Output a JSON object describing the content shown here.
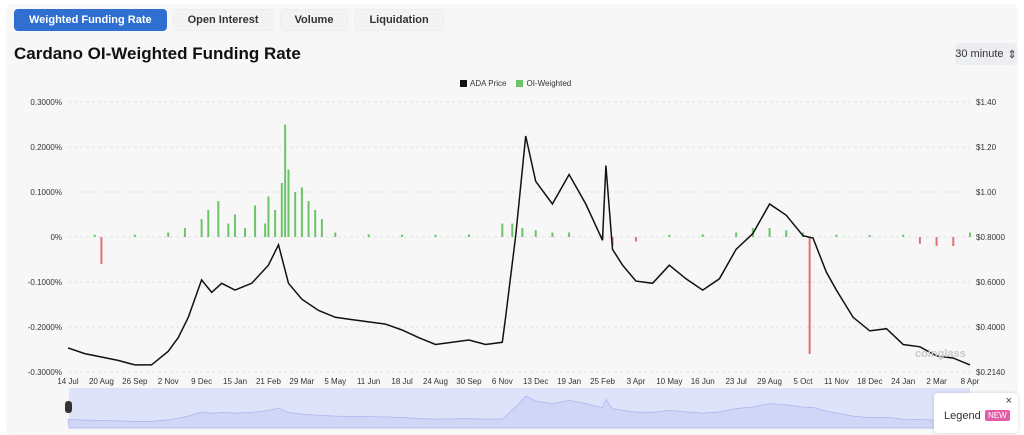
{
  "tabs": [
    {
      "label": "Weighted Funding Rate",
      "active": true
    },
    {
      "label": "Open Interest"
    },
    {
      "label": "Volume"
    },
    {
      "label": "Liquidation"
    }
  ],
  "title": "Cardano OI-Weighted Funding Rate",
  "interval": {
    "value": "30 minute",
    "icon": "updown-chevron-icon"
  },
  "legend_button": {
    "label": "Legend",
    "badge": "NEW",
    "close": "×"
  },
  "watermark": "coinglass",
  "colors": {
    "price": "#111111",
    "positive": "#6cc46a",
    "negative": "#e0707a",
    "accent": "#2f6fd0",
    "navigator": "#dfe3fa"
  },
  "chart_data": {
    "type": "line+bar",
    "legend": [
      "ADA Price",
      "OI-Weighted"
    ],
    "legend_placement": "top",
    "x_ticks": [
      "14 Jul",
      "20 Aug",
      "26 Sep",
      "2 Nov",
      "9 Dec",
      "15 Jan",
      "21 Feb",
      "29 Mar",
      "5 May",
      "11 Jun",
      "18 Jul",
      "24 Aug",
      "30 Sep",
      "6 Nov",
      "13 Dec",
      "19 Jan",
      "25 Feb",
      "3 Apr",
      "10 May",
      "16 Jun",
      "23 Jul",
      "29 Aug",
      "5 Oct",
      "11 Nov",
      "18 Dec",
      "24 Jan",
      "2 Mar",
      "8 Apr"
    ],
    "left_axis": {
      "ticks": [
        "0.3000%",
        "0.2000%",
        "0.1000%",
        "0%",
        "-0.1000%",
        "-0.2000%",
        "-0.3000%"
      ],
      "range": [
        -0.3,
        0.3
      ]
    },
    "right_axis": {
      "ticks": [
        "$1.40",
        "$1.20",
        "$1.00",
        "$0.8000",
        "$0.6000",
        "$0.4000",
        "$0.2140"
      ],
      "range": [
        0.214,
        1.4
      ]
    },
    "grid": true,
    "price_series": {
      "name": "ADA Price",
      "x": [
        0,
        0.5,
        1,
        1.5,
        2,
        2.5,
        3,
        3.3,
        3.6,
        4,
        4.3,
        4.6,
        5,
        5.5,
        6,
        6.3,
        6.6,
        7,
        7.5,
        8,
        8.5,
        9,
        9.5,
        10,
        10.5,
        11,
        11.5,
        12,
        12.5,
        13,
        13.1,
        13.4,
        13.7,
        14,
        14.5,
        15,
        15.5,
        16,
        16.1,
        16.3,
        16.6,
        17,
        17.5,
        18,
        18.5,
        19,
        19.5,
        20,
        20.5,
        21,
        21.5,
        22,
        22.3,
        22.7,
        23,
        23.5,
        24,
        24.5,
        25,
        25.5,
        26,
        26.5,
        27
      ],
      "y": [
        0.315,
        0.29,
        0.275,
        0.26,
        0.24,
        0.24,
        0.3,
        0.36,
        0.45,
        0.615,
        0.56,
        0.6,
        0.57,
        0.6,
        0.68,
        0.77,
        0.6,
        0.53,
        0.48,
        0.45,
        0.44,
        0.43,
        0.42,
        0.394,
        0.36,
        0.33,
        0.34,
        0.35,
        0.33,
        0.34,
        0.45,
        0.81,
        1.25,
        1.05,
        0.95,
        1.08,
        0.95,
        0.79,
        1.12,
        0.75,
        0.68,
        0.61,
        0.6,
        0.68,
        0.62,
        0.57,
        0.62,
        0.75,
        0.82,
        0.95,
        0.9,
        0.81,
        0.8,
        0.65,
        0.57,
        0.45,
        0.39,
        0.4,
        0.33,
        0.32,
        0.28,
        0.27,
        0.24
      ]
    },
    "funding_series": {
      "name": "OI-Weighted",
      "x": [
        0.8,
        1,
        2,
        3,
        3.5,
        4,
        4.2,
        4.5,
        4.8,
        5,
        5.3,
        5.6,
        5.9,
        6,
        6.2,
        6.4,
        6.5,
        6.6,
        6.8,
        7,
        7.2,
        7.4,
        7.6,
        8,
        9,
        10,
        11,
        12,
        13,
        13.3,
        13.6,
        14,
        14.5,
        15,
        16,
        16.3,
        17,
        18,
        19,
        20,
        20.5,
        21,
        21.5,
        22,
        22.2,
        23,
        24,
        25,
        25.5,
        26,
        26.5,
        27
      ],
      "value": [
        0.005,
        -0.06,
        0.005,
        0.01,
        0.02,
        0.04,
        0.06,
        0.08,
        0.03,
        0.05,
        0.02,
        0.07,
        0.03,
        0.09,
        0.06,
        0.12,
        0.25,
        0.15,
        0.1,
        0.11,
        0.08,
        0.06,
        0.04,
        0.01,
        0.006,
        0.005,
        0.005,
        0.006,
        0.03,
        0.03,
        0.02,
        0.015,
        0.01,
        0.01,
        0.005,
        -0.02,
        -0.01,
        0.005,
        0.006,
        0.01,
        0.02,
        0.02,
        0.015,
        0.01,
        -0.26,
        0.005,
        0.004,
        0.005,
        -0.015,
        -0.02,
        -0.02,
        0.01
      ]
    }
  }
}
